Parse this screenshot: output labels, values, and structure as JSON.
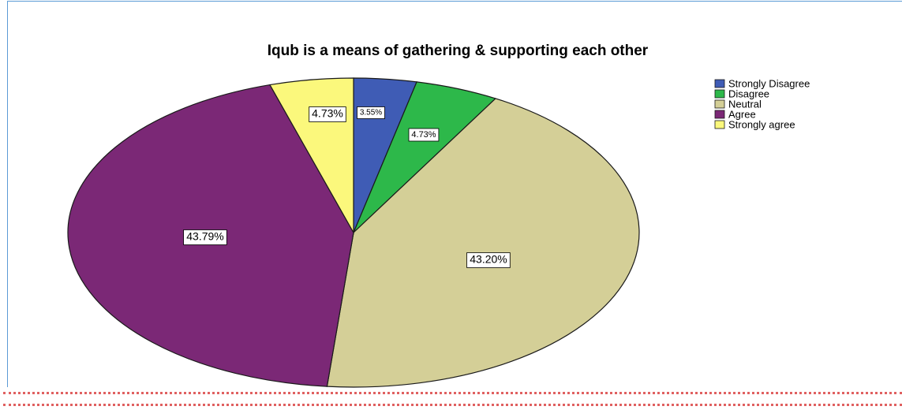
{
  "chart_data": {
    "type": "pie",
    "title": "Iqub is a means of gathering & supporting each other",
    "legend_position": "top-right",
    "slices": [
      {
        "name": "Strongly Disagree",
        "value": 3.55,
        "label": "3.55%",
        "color": "#3f5cb5"
      },
      {
        "name": "Disagree",
        "value": 4.73,
        "label": "4.73%",
        "color": "#2db84a"
      },
      {
        "name": "Neutral",
        "value": 43.2,
        "label": "43.20%",
        "color": "#d4cf97"
      },
      {
        "name": "Agree",
        "value": 43.79,
        "label": "43.79%",
        "color": "#7b2876"
      },
      {
        "name": "Strongly agree",
        "value": 4.73,
        "label": "4.73%",
        "color": "#fbf87c"
      }
    ]
  }
}
